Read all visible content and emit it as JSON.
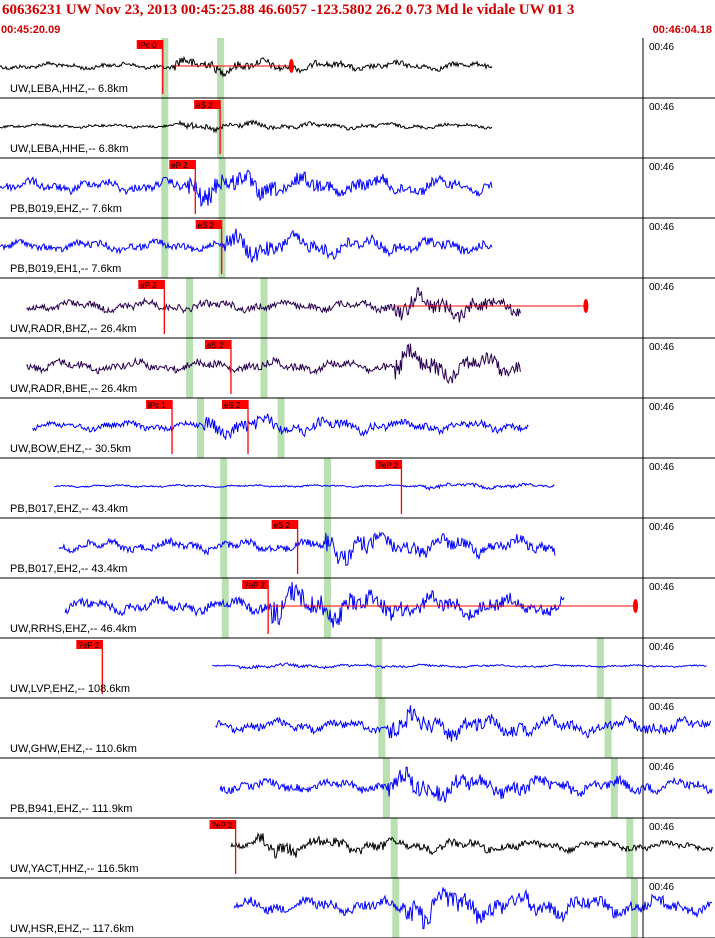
{
  "header": {
    "title": "60636231 UW Nov 23, 2013 00:45:25.88    46.6057 -123.5802 26.2 0.73 Md le vidale UW 01    3",
    "time_start": "00:45:20.09",
    "time_end": "00:46:04.18"
  },
  "colors": {
    "trace_black": "#000000",
    "trace_blue": "#0000ff",
    "trace_purple": "#2a0050",
    "pick_red": "#ff0000",
    "phase_green": "#b8e0b0",
    "header_red": "#d00000"
  },
  "chart_data": {
    "type": "line",
    "x_unit": "seconds after 00:45:20.09",
    "xlim": [
      0,
      44.09
    ],
    "tick_label": "00:46",
    "traces": [
      {
        "label": "UW,LEBA,HHZ,-- 6.8km",
        "color": "black",
        "start": 0,
        "end": 31.8,
        "amp": 0.32,
        "burst_at": 11.2,
        "picks": [
          {
            "label": "iPc 0",
            "t": 10.5
          }
        ],
        "green": [
          10.6,
          14.2
        ],
        "red_marker": 18.8
      },
      {
        "label": "UW,LEBA,HHE,-- 6.8km",
        "color": "black",
        "start": 0,
        "end": 31.8,
        "amp": 0.2,
        "burst_at": 11.5,
        "picks": [
          {
            "label": "eS 2",
            "t": 14.2
          }
        ],
        "green": [
          10.6,
          14.2
        ]
      },
      {
        "label": "PB,B019,EHZ,-- 7.6km",
        "color": "blue",
        "start": 0,
        "end": 31.8,
        "amp": 0.65,
        "burst_at": 12.0,
        "picks": [
          {
            "label": "eP 2",
            "t": 12.6
          }
        ],
        "green": [
          10.6,
          14.3
        ]
      },
      {
        "label": "PB,B019,EH1,-- 7.6km",
        "color": "blue",
        "start": 0,
        "end": 31.8,
        "amp": 0.55,
        "burst_at": 14.5,
        "picks": [
          {
            "label": "eS 2",
            "t": 14.3
          }
        ],
        "green": [
          10.6,
          14.3
        ]
      },
      {
        "label": "UW,RADR,BHZ,-- 26.4km",
        "color": "purple",
        "start": 1.7,
        "end": 33.6,
        "amp": 0.55,
        "burst_at": 25.5,
        "picks": [
          {
            "label": "eP 2",
            "t": 10.6
          }
        ],
        "green": [
          12.2,
          17.0
        ],
        "red_marker": 37.8
      },
      {
        "label": "UW,RADR,BHE,-- 26.4km",
        "color": "purple",
        "start": 1.7,
        "end": 33.6,
        "amp": 0.6,
        "burst_at": 25.5,
        "picks": [
          {
            "label": "eS 2",
            "t": 14.9
          }
        ],
        "green": [
          12.2,
          17.0
        ]
      },
      {
        "label": "UW,BOW,EHZ,-- 30.5km",
        "color": "blue",
        "start": 2.1,
        "end": 34.1,
        "amp": 0.45,
        "burst_at": 13.0,
        "picks": [
          {
            "label": "iPc 1",
            "t": 11.1
          },
          {
            "label": "eS 2",
            "t": 16.0
          }
        ],
        "green": [
          12.9,
          18.1
        ]
      },
      {
        "label": "PB,B017,EHZ,-- 43.4km",
        "color": "blue",
        "start": 3.5,
        "end": 35.8,
        "amp": 0.12,
        "burst_at": 27.0,
        "picks": [
          {
            "label": "?eP 2",
            "t": 25.9
          }
        ],
        "green": [
          14.4,
          21.1
        ]
      },
      {
        "label": "PB,B017,EH2,-- 43.4km",
        "color": "blue",
        "start": 3.8,
        "end": 35.8,
        "amp": 0.6,
        "burst_at": 21.0,
        "picks": [
          {
            "label": "eS 2",
            "t": 19.2
          }
        ],
        "green": [
          14.4,
          21.1
        ]
      },
      {
        "label": "UW,RRHS,EHZ,-- 46.4km",
        "color": "blue",
        "start": 4.2,
        "end": 36.4,
        "amp": 0.75,
        "burst_at": 17.5,
        "picks": [
          {
            "label": "?eP 2",
            "t": 17.3
          }
        ],
        "green": [
          14.5,
          21.1
        ],
        "red_marker": 41.0
      },
      {
        "label": "UW,LVP,EHZ,-- 108.6km",
        "color": "blue",
        "start": 13.7,
        "end": 45.6,
        "amp": 0.1,
        "burst_at": 15.4,
        "picks": [
          {
            "label": "?eP 2",
            "t": 6.6
          }
        ],
        "green": [
          24.4,
          38.7
        ]
      },
      {
        "label": "UW,GHW,EHZ,-- 110.6km",
        "color": "blue",
        "start": 13.9,
        "end": 45.9,
        "amp": 0.6,
        "burst_at": 25.0,
        "picks": [],
        "green": [
          24.6,
          39.2
        ]
      },
      {
        "label": "PB,B941,EHZ,-- 111.9km",
        "color": "blue",
        "start": 14.2,
        "end": 46.2,
        "amp": 0.6,
        "burst_at": 25.0,
        "picks": [],
        "green": [
          24.9,
          39.6
        ]
      },
      {
        "label": "UW,YACT,HHZ,-- 116.5km",
        "color": "black",
        "start": 14.9,
        "end": 46.8,
        "amp": 0.45,
        "burst_at": 16.5,
        "picks": [
          {
            "label": "?eP 2",
            "t": 15.2
          }
        ],
        "green": [
          25.4,
          40.6
        ]
      },
      {
        "label": "UW,HSR,EHZ,-- 117.6km",
        "color": "blue",
        "start": 15.1,
        "end": 47.0,
        "amp": 0.75,
        "burst_at": 26.0,
        "picks": [],
        "green": [
          25.5,
          40.9
        ]
      }
    ]
  }
}
